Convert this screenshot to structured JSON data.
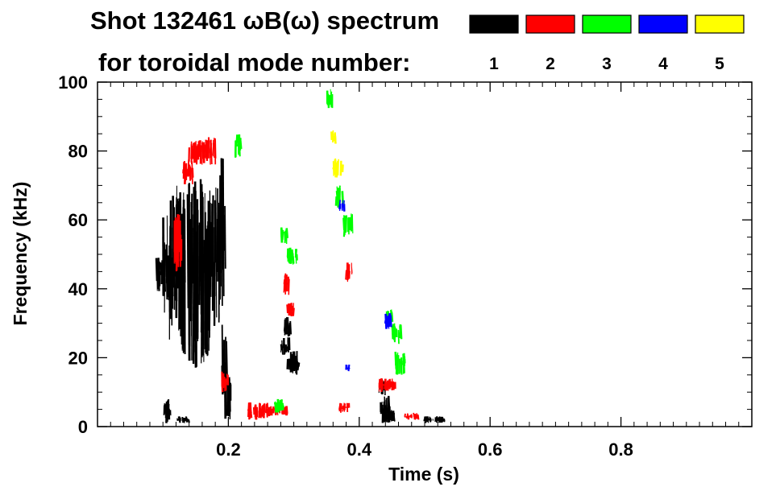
{
  "chart_data": {
    "type": "scatter",
    "title_line1": "Shot 132461 ωB(ω) spectrum",
    "title_line2": "for toroidal mode number:",
    "xlabel": "Time (s)",
    "ylabel": "Frequency (kHz)",
    "xlim": [
      0.0,
      1.0
    ],
    "ylim": [
      0,
      100
    ],
    "x_ticks": [
      0.2,
      0.4,
      0.6,
      0.8
    ],
    "x_tick_labels": [
      "0.2",
      "0.4",
      "0.6",
      "0.8"
    ],
    "y_ticks": [
      0,
      20,
      40,
      60,
      80,
      100
    ],
    "y_tick_labels": [
      "0",
      "20",
      "40",
      "60",
      "80",
      "100"
    ],
    "grid": false,
    "legend_placement": "top-right",
    "series": [
      {
        "name": "1",
        "color": "#000000",
        "bands": [
          [
            0.09,
            0.102,
            38,
            50
          ],
          [
            0.1,
            0.112,
            30,
            62
          ],
          [
            0.11,
            0.125,
            25,
            70
          ],
          [
            0.12,
            0.135,
            20,
            72
          ],
          [
            0.13,
            0.145,
            18,
            72
          ],
          [
            0.14,
            0.155,
            15,
            73
          ],
          [
            0.15,
            0.163,
            18,
            72
          ],
          [
            0.16,
            0.172,
            20,
            70
          ],
          [
            0.17,
            0.18,
            25,
            68
          ],
          [
            0.18,
            0.188,
            30,
            75
          ],
          [
            0.187,
            0.195,
            35,
            80
          ],
          [
            0.19,
            0.197,
            5,
            30
          ],
          [
            0.195,
            0.205,
            2,
            15
          ],
          [
            0.1,
            0.112,
            1,
            8
          ],
          [
            0.12,
            0.14,
            1,
            3
          ],
          [
            0.28,
            0.294,
            20,
            26
          ],
          [
            0.29,
            0.305,
            15,
            22
          ],
          [
            0.3,
            0.31,
            16,
            19
          ],
          [
            0.285,
            0.295,
            26,
            32
          ],
          [
            0.43,
            0.447,
            1,
            9
          ],
          [
            0.43,
            0.44,
            9,
            14
          ],
          [
            0.445,
            0.455,
            1,
            5
          ],
          [
            0.5,
            0.53,
            1,
            3
          ]
        ]
      },
      {
        "name": "2",
        "color": "#ff0000",
        "bands": [
          [
            0.14,
            0.18,
            76,
            84
          ],
          [
            0.13,
            0.145,
            70,
            78
          ],
          [
            0.115,
            0.13,
            45,
            62
          ],
          [
            0.19,
            0.2,
            10,
            16
          ],
          [
            0.23,
            0.26,
            2,
            7
          ],
          [
            0.26,
            0.29,
            3,
            6
          ],
          [
            0.285,
            0.295,
            38,
            45
          ],
          [
            0.29,
            0.3,
            32,
            36
          ],
          [
            0.37,
            0.385,
            4,
            7
          ],
          [
            0.38,
            0.39,
            42,
            48
          ],
          [
            0.43,
            0.445,
            10,
            14
          ],
          [
            0.44,
            0.455,
            10,
            14
          ],
          [
            0.47,
            0.49,
            2,
            4
          ]
        ]
      },
      {
        "name": "3",
        "color": "#00ff00",
        "bands": [
          [
            0.21,
            0.22,
            78,
            85
          ],
          [
            0.27,
            0.285,
            4,
            8
          ],
          [
            0.29,
            0.305,
            47,
            52
          ],
          [
            0.28,
            0.29,
            53,
            58
          ],
          [
            0.375,
            0.39,
            55,
            62
          ],
          [
            0.365,
            0.375,
            63,
            70
          ],
          [
            0.35,
            0.36,
            92,
            98
          ],
          [
            0.45,
            0.465,
            24,
            30
          ],
          [
            0.455,
            0.47,
            15,
            22
          ],
          [
            0.44,
            0.45,
            30,
            34
          ]
        ]
      },
      {
        "name": "4",
        "color": "#0000ff",
        "bands": [
          [
            0.37,
            0.378,
            62,
            66
          ],
          [
            0.44,
            0.45,
            28,
            33
          ],
          [
            0.38,
            0.385,
            16,
            18
          ]
        ]
      },
      {
        "name": "5",
        "color": "#ffff00",
        "bands": [
          [
            0.36,
            0.375,
            72,
            78
          ],
          [
            0.355,
            0.365,
            82,
            86
          ]
        ]
      }
    ]
  }
}
